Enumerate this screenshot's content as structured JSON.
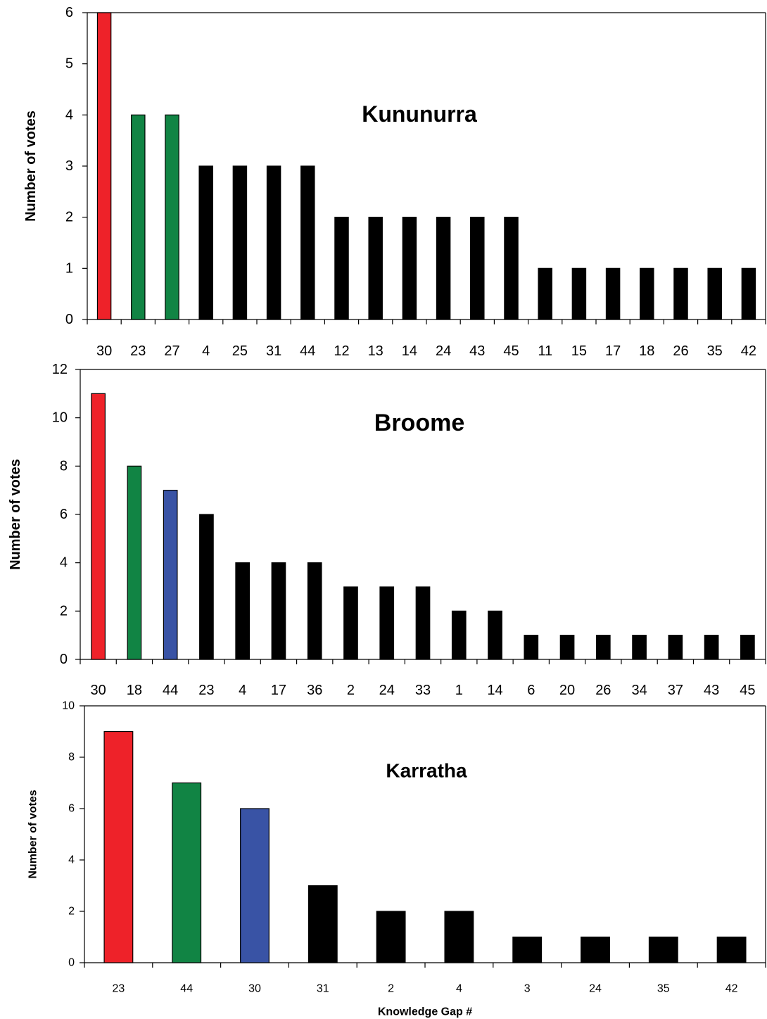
{
  "colors": {
    "red": "#ee2229",
    "green": "#118444",
    "blue": "#3953a5",
    "black": "#000000"
  },
  "chart_data": [
    {
      "type": "bar",
      "title": "Kununurra",
      "xlabel": "",
      "ylabel": "Number of votes",
      "ylim": [
        0,
        6
      ],
      "yticks": [
        0,
        1,
        2,
        3,
        4,
        5,
        6
      ],
      "categories": [
        "30",
        "23",
        "27",
        "4",
        "25",
        "31",
        "44",
        "12",
        "13",
        "14",
        "24",
        "43",
        "45",
        "11",
        "15",
        "17",
        "18",
        "26",
        "35",
        "42"
      ],
      "values": [
        6,
        4,
        4,
        3,
        3,
        3,
        3,
        2,
        2,
        2,
        2,
        2,
        2,
        1,
        1,
        1,
        1,
        1,
        1,
        1
      ],
      "bar_colors": [
        "red",
        "green",
        "green",
        "black",
        "black",
        "black",
        "black",
        "black",
        "black",
        "black",
        "black",
        "black",
        "black",
        "black",
        "black",
        "black",
        "black",
        "black",
        "black",
        "black"
      ],
      "grid": false
    },
    {
      "type": "bar",
      "title": "Broome",
      "xlabel": "",
      "ylabel": "Number of votes",
      "ylim": [
        0,
        12
      ],
      "yticks": [
        0,
        2,
        4,
        6,
        8,
        10,
        12
      ],
      "categories": [
        "30",
        "18",
        "44",
        "23",
        "4",
        "17",
        "36",
        "2",
        "24",
        "33",
        "1",
        "14",
        "6",
        "20",
        "26",
        "34",
        "37",
        "43",
        "45"
      ],
      "values": [
        11,
        8,
        7,
        6,
        4,
        4,
        4,
        3,
        3,
        3,
        2,
        2,
        1,
        1,
        1,
        1,
        1,
        1,
        1
      ],
      "bar_colors": [
        "red",
        "green",
        "blue",
        "black",
        "black",
        "black",
        "black",
        "black",
        "black",
        "black",
        "black",
        "black",
        "black",
        "black",
        "black",
        "black",
        "black",
        "black",
        "black"
      ],
      "grid": false
    },
    {
      "type": "bar",
      "title": "Karratha",
      "xlabel": "Knowledge Gap #",
      "ylabel": "Number of votes",
      "ylim": [
        0,
        10
      ],
      "yticks": [
        0,
        2,
        4,
        6,
        8,
        10
      ],
      "categories": [
        "23",
        "44",
        "30",
        "31",
        "2",
        "4",
        "3",
        "24",
        "35",
        "42"
      ],
      "values": [
        9,
        7,
        6,
        3,
        2,
        2,
        1,
        1,
        1,
        1
      ],
      "bar_colors": [
        "red",
        "green",
        "blue",
        "black",
        "black",
        "black",
        "black",
        "black",
        "black",
        "black"
      ],
      "grid": false
    }
  ]
}
